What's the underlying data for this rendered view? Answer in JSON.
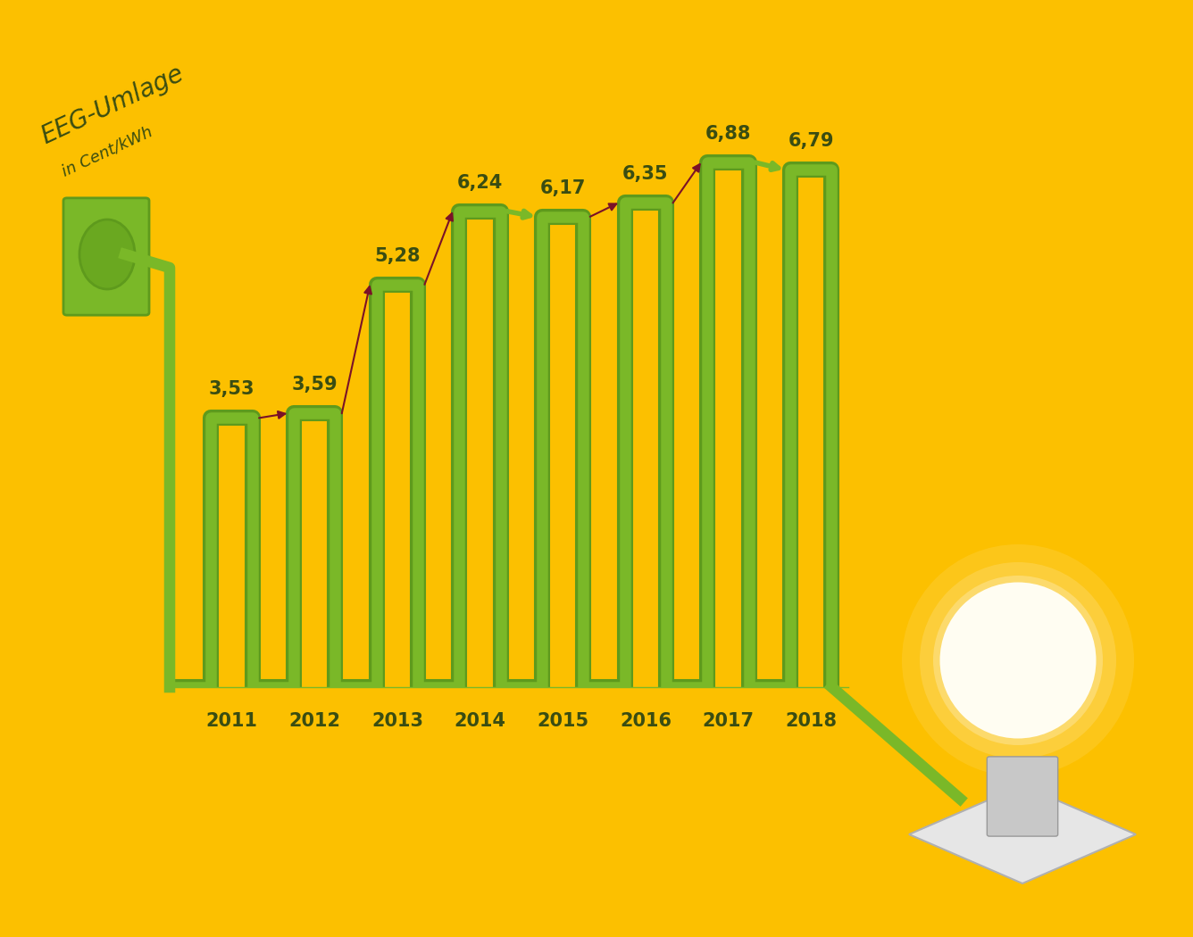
{
  "chart_data": {
    "type": "bar",
    "title": "EEG-Umlage",
    "subtitle": "in Cent/kWh",
    "categories": [
      "2011",
      "2012",
      "2013",
      "2014",
      "2015",
      "2016",
      "2017",
      "2018"
    ],
    "values": [
      3.53,
      3.59,
      5.28,
      6.24,
      6.17,
      6.35,
      6.88,
      6.79
    ],
    "value_labels": [
      "3,53",
      "3,59",
      "5,28",
      "6,24",
      "6,17",
      "6,35",
      "6,88",
      "6,79"
    ],
    "color": "#7ab828",
    "ylim": [
      0,
      7.5
    ],
    "data_labels": true,
    "tick_labels": "x"
  }
}
